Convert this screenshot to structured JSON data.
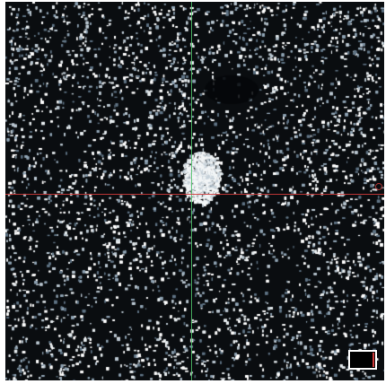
{
  "viewer": {
    "background_color": "#0a0d10",
    "speckle_colors": [
      "#ffffff",
      "#e6ecef",
      "#b9c6d0",
      "#8fa3b3",
      "#5f7384"
    ],
    "crosshair": {
      "vertical_color": "#4fc36a",
      "horizontal_color": "#d23b3b"
    },
    "edge_marker_color": "#c83a3a",
    "mini_box_accent_color": "#d23b3b"
  }
}
